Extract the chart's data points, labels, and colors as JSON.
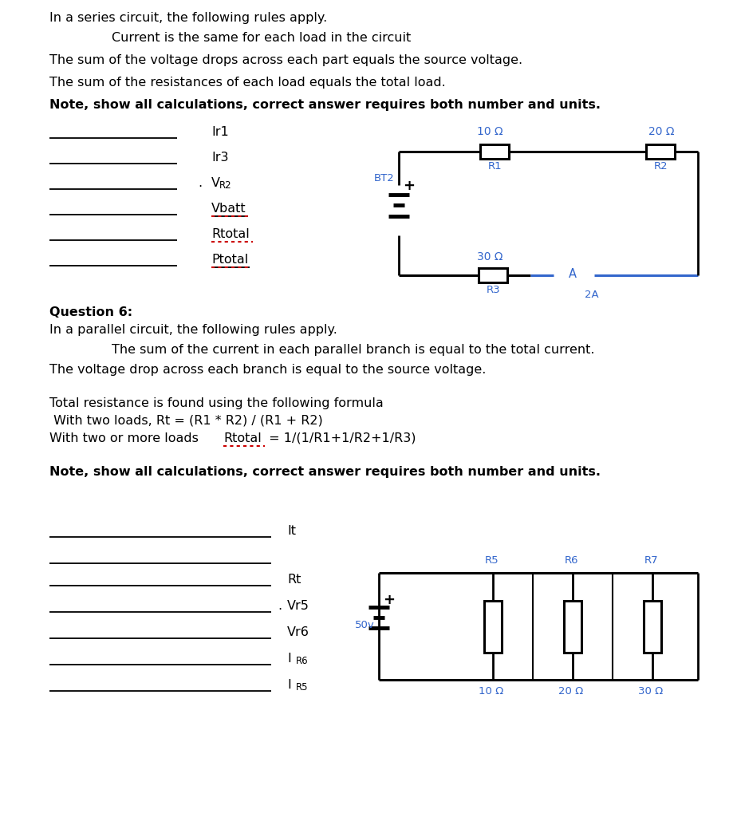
{
  "bg_color": "#ffffff",
  "text_color": "#000000",
  "blue_color": "#3366cc",
  "red_color": "#cc0000",
  "fig_width": 9.24,
  "fig_height": 10.24,
  "para1": "In a series circuit, the following rules apply.",
  "para1_indent": "Current is the same for each load in the circuit",
  "para2": "The sum of the voltage drops across each part equals the source voltage.",
  "para3": "The sum of the resistances of each load equals the total load.",
  "note1": "Note, show all calculations, correct answer requires both number and units.",
  "q6": "Question 6:",
  "para4": "In a parallel circuit, the following rules apply.",
  "para4_indent": "The sum of the current in each parallel branch is equal to the total current.",
  "para5": "The voltage drop across each branch is equal to the source voltage.",
  "para6": "Total resistance is found using the following formula",
  "para7": " With two loads, Rt = (R1 * R2) / (R1 + R2)",
  "para8_pre": "With two or more loads   ",
  "para8_rtotal": "Rtotal",
  "para8_post": " = 1/(1/R1+1/R2+1/R3)",
  "note2": "Note, show all calculations, correct answer requires both number and units."
}
